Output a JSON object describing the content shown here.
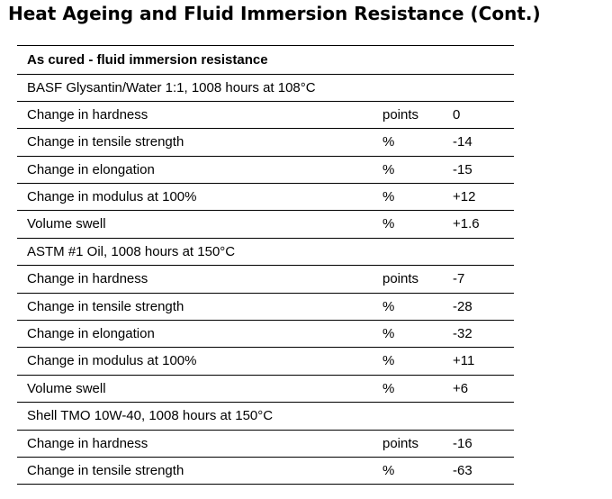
{
  "title": "Heat Ageing and Fluid Immersion Resistance (Cont.)",
  "table": {
    "header": "As cured - fluid immersion resistance",
    "rows": [
      {
        "type": "group",
        "label": "BASF Glysantin/Water 1:1, 1008 hours at 108°C"
      },
      {
        "type": "data",
        "label": "Change in hardness",
        "unit": "points",
        "value": "0"
      },
      {
        "type": "data",
        "label": "Change in tensile strength",
        "unit": "%",
        "value": "-14"
      },
      {
        "type": "data",
        "label": "Change in elongation",
        "unit": "%",
        "value": "-15"
      },
      {
        "type": "data",
        "label": "Change in modulus at 100%",
        "unit": "%",
        "value": "+12"
      },
      {
        "type": "data",
        "label": "Volume swell",
        "unit": "%",
        "value": "+1.6"
      },
      {
        "type": "group",
        "label": "ASTM #1 Oil, 1008 hours at 150°C"
      },
      {
        "type": "data",
        "label": "Change in hardness",
        "unit": "points",
        "value": "-7"
      },
      {
        "type": "data",
        "label": "Change in tensile strength",
        "unit": "%",
        "value": "-28"
      },
      {
        "type": "data",
        "label": "Change in elongation",
        "unit": "%",
        "value": "-32"
      },
      {
        "type": "data",
        "label": "Change in modulus at 100%",
        "unit": "%",
        "value": "+11"
      },
      {
        "type": "data",
        "label": "Volume swell",
        "unit": "%",
        "value": "+6"
      },
      {
        "type": "group",
        "label": "Shell TMO 10W-40, 1008 hours at 150°C"
      },
      {
        "type": "data",
        "label": "Change in hardness",
        "unit": "points",
        "value": "-16"
      },
      {
        "type": "data",
        "label": "Change in tensile strength",
        "unit": "%",
        "value": "-63"
      }
    ]
  }
}
